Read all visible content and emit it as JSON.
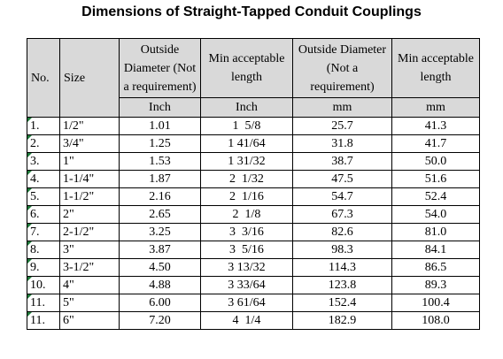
{
  "title": "Dimensions of Straight-Tapped Conduit Couplings",
  "headers": {
    "no": "No.",
    "size": "Size",
    "od_in": "Outside Diameter (Not a requirement)",
    "len_in": "Min acceptable length",
    "od_mm": "Outside Diameter (Not a requirement)",
    "len_mm": "Min acceptable length"
  },
  "units": {
    "od_in": "Inch",
    "len_in": "Inch",
    "od_mm": "mm",
    "len_mm": "mm"
  },
  "rows": [
    {
      "no": "1.",
      "size": "1/2\"",
      "od_in": "1.01",
      "len_in": "1  5/8",
      "od_mm": "25.7",
      "len_mm": "41.3"
    },
    {
      "no": "2.",
      "size": "3/4\"",
      "od_in": "1.25",
      "len_in": "1 41/64",
      "od_mm": "31.8",
      "len_mm": "41.7"
    },
    {
      "no": "3.",
      "size": "1\"",
      "od_in": "1.53",
      "len_in": "1 31/32",
      "od_mm": "38.7",
      "len_mm": "50.0"
    },
    {
      "no": "4.",
      "size": "1-1/4\"",
      "od_in": "1.87",
      "len_in": "2  1/32",
      "od_mm": "47.5",
      "len_mm": "51.6"
    },
    {
      "no": "5.",
      "size": "1-1/2\"",
      "od_in": "2.16",
      "len_in": "2  1/16",
      "od_mm": "54.7",
      "len_mm": "52.4"
    },
    {
      "no": "6.",
      "size": "2\"",
      "od_in": "2.65",
      "len_in": "2  1/8",
      "od_mm": "67.3",
      "len_mm": "54.0"
    },
    {
      "no": "7.",
      "size": "2-1/2\"",
      "od_in": "3.25",
      "len_in": "3  3/16",
      "od_mm": "82.6",
      "len_mm": "81.0"
    },
    {
      "no": "8.",
      "size": "3\"",
      "od_in": "3.87",
      "len_in": "3  5/16",
      "od_mm": "98.3",
      "len_mm": "84.1"
    },
    {
      "no": "9.",
      "size": "3-1/2\"",
      "od_in": "4.50",
      "len_in": "3 13/32",
      "od_mm": "114.3",
      "len_mm": "86.5"
    },
    {
      "no": "10.",
      "size": "4\"",
      "od_in": "4.88",
      "len_in": "3 33/64",
      "od_mm": "123.8",
      "len_mm": "89.3"
    },
    {
      "no": "11.",
      "size": "5\"",
      "od_in": "6.00",
      "len_in": "3 61/64",
      "od_mm": "152.4",
      "len_mm": "100.4"
    },
    {
      "no": "11.",
      "size": "6\"",
      "od_in": "7.20",
      "len_in": "4  1/4",
      "od_mm": "182.9",
      "len_mm": "108.0"
    }
  ],
  "colors": {
    "header_bg": "#d9d9d9",
    "cell_marker": "#1f7a3a"
  }
}
